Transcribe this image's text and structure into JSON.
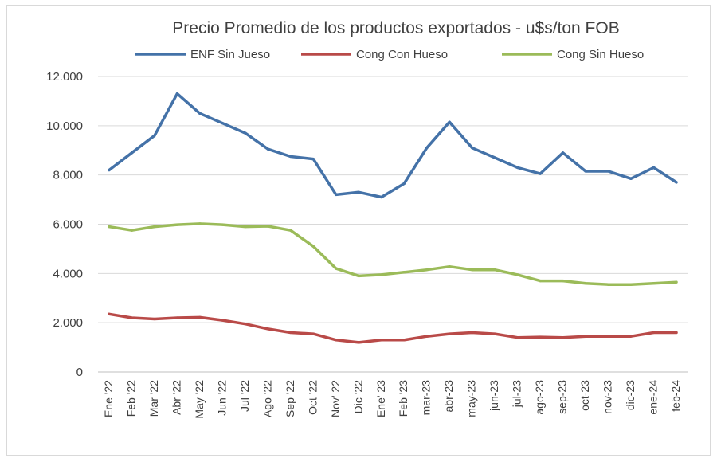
{
  "chart_data": {
    "type": "line",
    "title": "Precio Promedio de los productos exportados - u$s/ton FOB",
    "xlabel": "",
    "ylabel": "",
    "ylim": [
      0,
      12000
    ],
    "yticks": [
      0,
      2000,
      4000,
      6000,
      8000,
      10000,
      12000
    ],
    "ytick_labels": [
      "0",
      "2.000",
      "4.000",
      "6.000",
      "8.000",
      "10.000",
      "12.000"
    ],
    "grid": true,
    "legend_position": "top",
    "categories": [
      "Ene '22",
      "Feb '22",
      "Mar '22",
      "Abr '22",
      "May '22",
      "Jun '22",
      "Jul '22",
      "Ago '22",
      "Sep '22",
      "Oct '22",
      "Nov' 22",
      "Dic '22",
      "Ene' 23",
      "Feb '23",
      "mar-23",
      "abr-23",
      "may-23",
      "jun-23",
      "jul-23",
      "ago-23",
      "sep-23",
      "oct-23",
      "nov-23",
      "dic-23",
      "ene-24",
      "feb-24"
    ],
    "series": [
      {
        "name": "ENF Sin Jueso",
        "color": "#4472a8",
        "values": [
          8200,
          8900,
          9600,
          11300,
          10500,
          10100,
          9700,
          9050,
          8750,
          8650,
          7200,
          7300,
          7100,
          7650,
          9100,
          10150,
          9100,
          8700,
          8300,
          8050,
          8900,
          8150,
          8150,
          7850,
          8300,
          7700
        ]
      },
      {
        "name": "Cong Con Hueso",
        "color": "#b94a48",
        "values": [
          2350,
          2200,
          2150,
          2200,
          2220,
          2100,
          1950,
          1750,
          1600,
          1550,
          1300,
          1200,
          1300,
          1300,
          1450,
          1550,
          1600,
          1550,
          1400,
          1420,
          1400,
          1450,
          1450,
          1450,
          1600,
          1600
        ]
      },
      {
        "name": "Cong Sin Hueso",
        "color": "#9bbb59",
        "values": [
          5900,
          5750,
          5900,
          5980,
          6020,
          5980,
          5900,
          5920,
          5750,
          5100,
          4200,
          3900,
          3950,
          4050,
          4150,
          4280,
          4150,
          4150,
          3950,
          3700,
          3700,
          3600,
          3550,
          3550,
          3600,
          3650
        ]
      }
    ]
  }
}
